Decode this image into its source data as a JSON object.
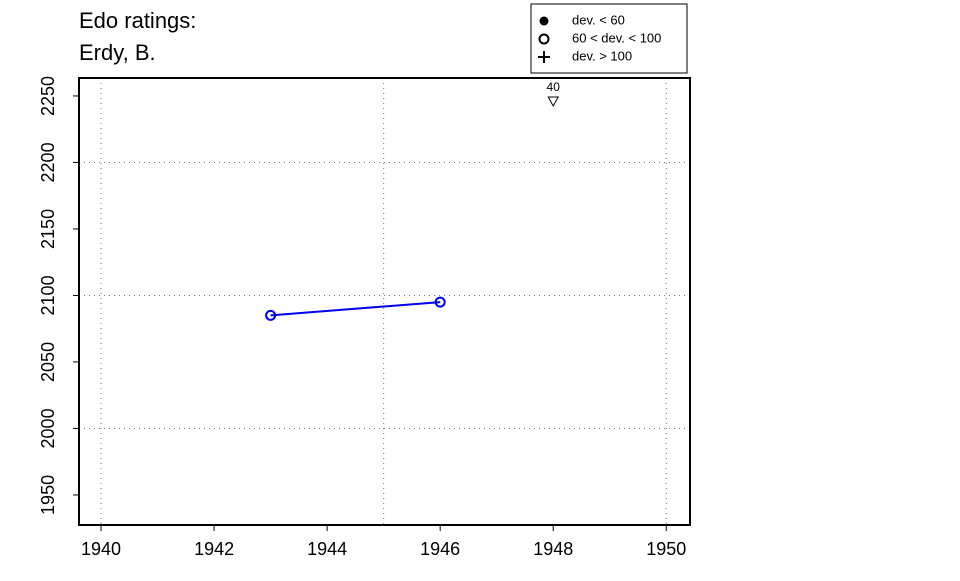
{
  "chart_data": {
    "type": "line",
    "title_lines": [
      "Edo ratings:",
      "Erdy, B."
    ],
    "xlim": [
      1939.61,
      1950.42
    ],
    "ylim": [
      1927.4,
      2263.5
    ],
    "xticks": [
      1940,
      1942,
      1944,
      1946,
      1948,
      1950
    ],
    "yticks": [
      1950,
      2000,
      2050,
      2100,
      2150,
      2200,
      2250
    ],
    "xgrid": [
      1940,
      1945,
      1950
    ],
    "ygrid": [
      2000,
      2100,
      2200
    ],
    "grid": true,
    "series": [
      {
        "color": "#0000ee",
        "marker": "open-circle",
        "x": [
          1943,
          1946
        ],
        "values": [
          2085,
          2095
        ]
      }
    ],
    "annotations": [
      {
        "x": 1948,
        "label": "40",
        "marker": "down-triangle"
      }
    ],
    "legend": {
      "position": "top-right",
      "entries": [
        {
          "label": "dev. < 60",
          "marker": "filled-circle"
        },
        {
          "label": "60 < dev. < 100",
          "marker": "open-circle"
        },
        {
          "label": "dev. > 100",
          "marker": "plus"
        }
      ]
    }
  }
}
